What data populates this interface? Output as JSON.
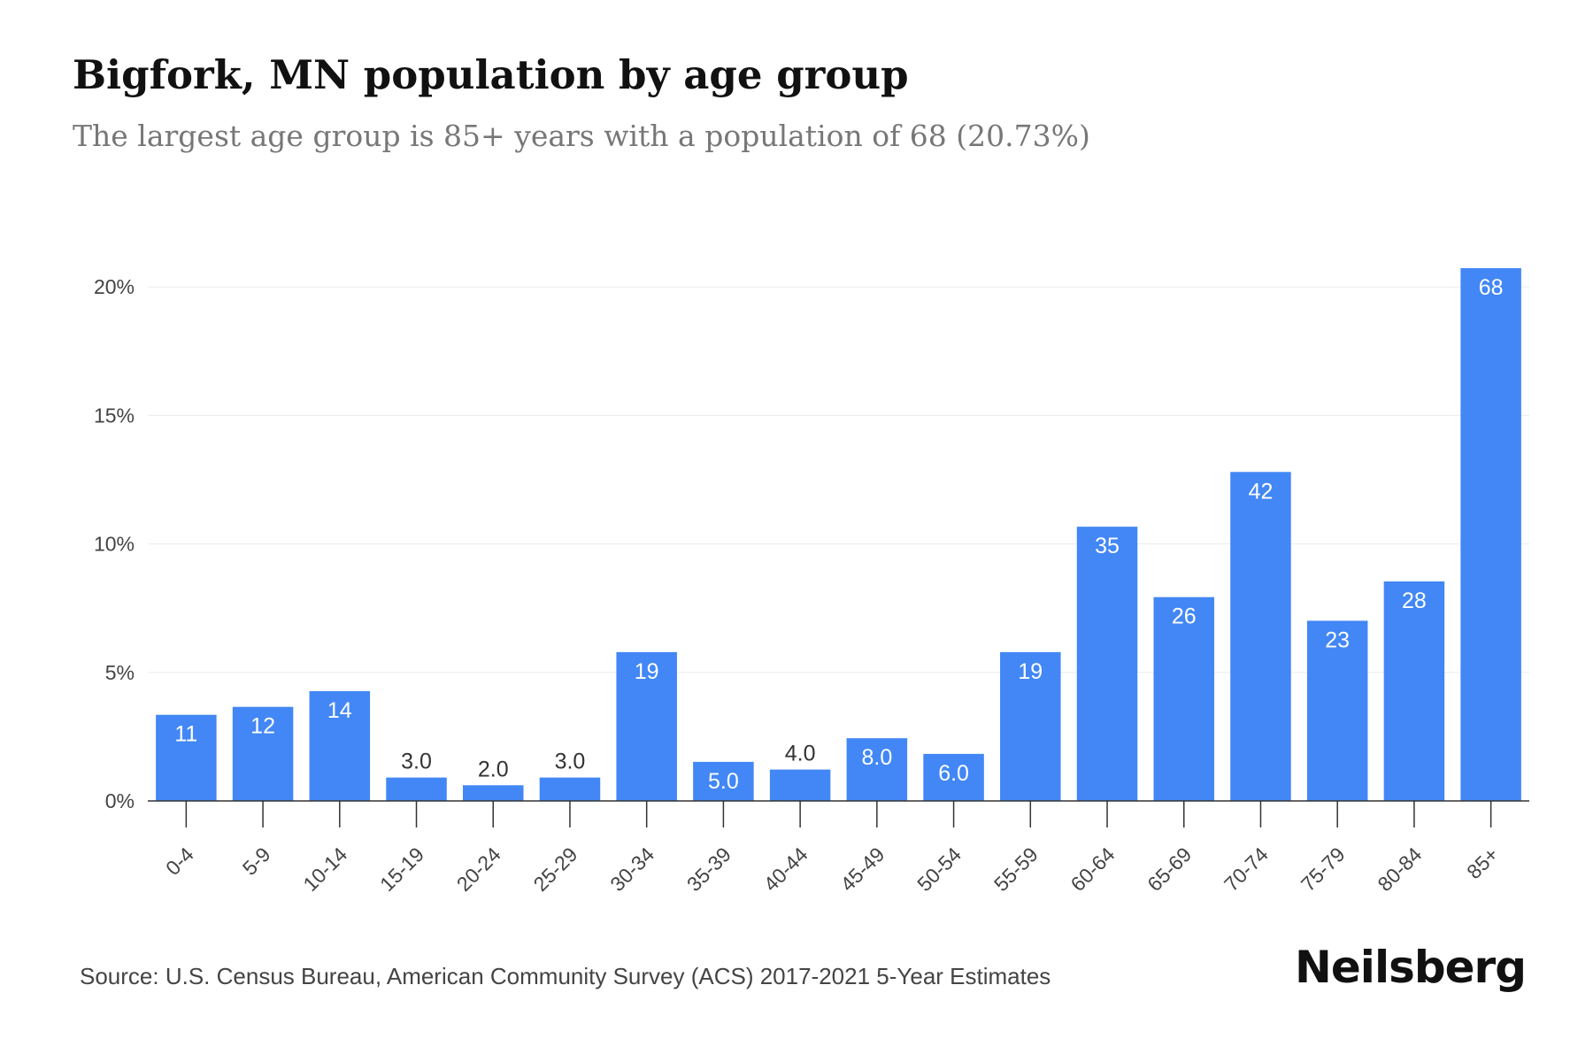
{
  "header": {
    "title": "Bigfork, MN population by age group",
    "subtitle": "The largest age group is 85+ years with a population of 68 (20.73%)"
  },
  "footer": {
    "source": "Source: U.S. Census Bureau, American Community Survey (ACS) 2017-2021 5-Year Estimates",
    "brand": "Neilsberg"
  },
  "colors": {
    "bar": "#4287f5",
    "label_inside": "#ffffff",
    "label_outside": "#333333",
    "grid": "#ececec",
    "axis": "#333333",
    "tick_text": "#444444"
  },
  "chart_data": {
    "type": "bar",
    "categories": [
      "0-4",
      "5-9",
      "10-14",
      "15-19",
      "20-24",
      "25-29",
      "30-34",
      "35-39",
      "40-44",
      "45-49",
      "50-54",
      "55-59",
      "60-64",
      "65-69",
      "70-74",
      "75-79",
      "80-84",
      "85+"
    ],
    "series": [
      {
        "values": [
          3.35,
          3.66,
          4.27,
          0.91,
          0.61,
          0.91,
          5.79,
          1.52,
          1.22,
          2.44,
          1.83,
          5.79,
          10.67,
          7.93,
          12.8,
          7.01,
          8.54,
          20.73
        ]
      }
    ],
    "data_labels": [
      "11",
      "12",
      "14",
      "3.0",
      "2.0",
      "3.0",
      "19",
      "5.0",
      "4.0",
      "8.0",
      "6.0",
      "19",
      "35",
      "26",
      "42",
      "23",
      "28",
      "68"
    ],
    "label_inside": [
      true,
      true,
      true,
      false,
      false,
      false,
      true,
      true,
      false,
      true,
      true,
      true,
      true,
      true,
      true,
      true,
      true,
      true
    ],
    "ylim": [
      0,
      20.73
    ],
    "yticks": [
      0,
      5,
      10,
      15,
      20
    ],
    "ytick_labels": [
      "0%",
      "5%",
      "10%",
      "15%",
      "20%"
    ],
    "grid": true,
    "legend": "none",
    "xlabel": "",
    "ylabel": ""
  }
}
